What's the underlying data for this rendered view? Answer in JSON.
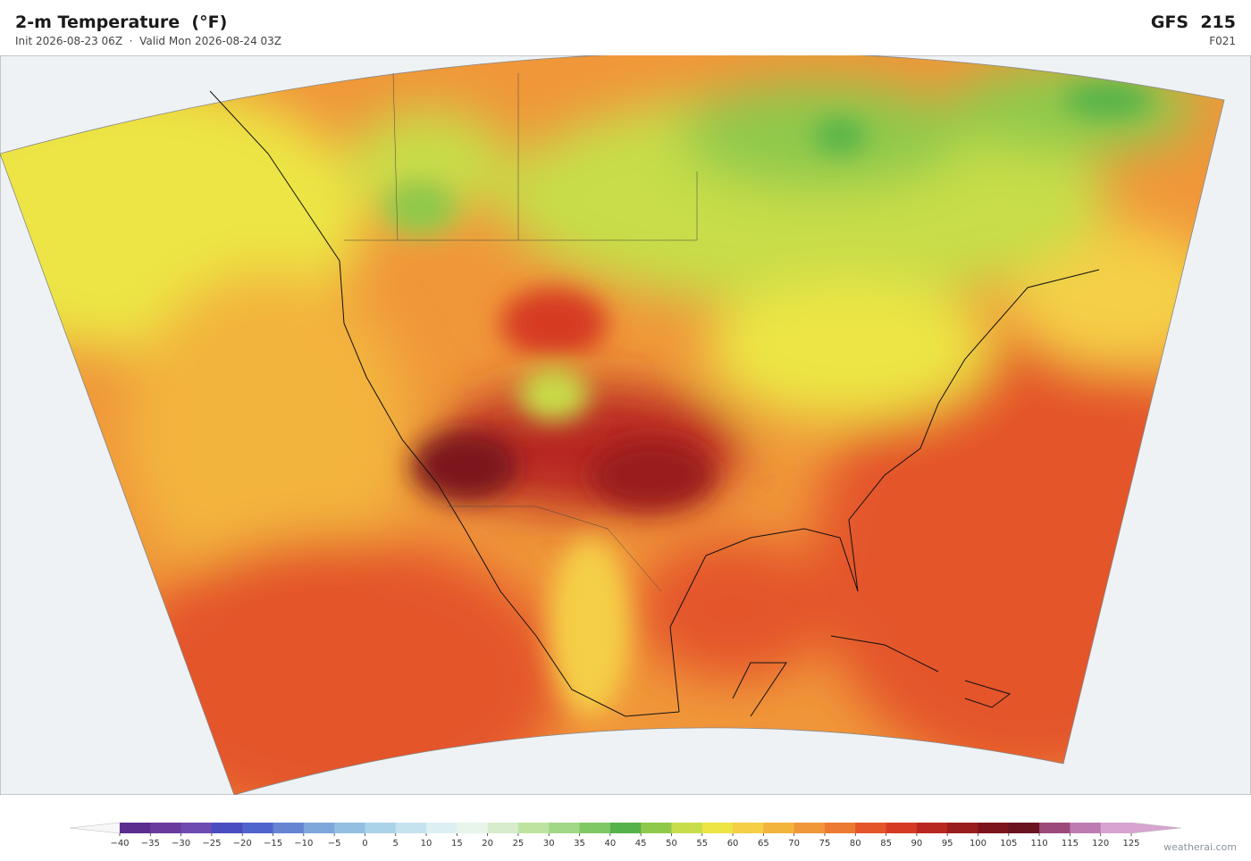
{
  "header": {
    "title": "2-m Temperature  (°F)",
    "subtitle": "Init 2026-08-23 06Z  ·  Valid Mon 2026-08-24 03Z",
    "model": "GFS  215",
    "forecast_hour": "F021"
  },
  "colorbar": {
    "ticks": [
      {
        "value": -40,
        "label": "−40"
      },
      {
        "value": -35,
        "label": "−35"
      },
      {
        "value": -30,
        "label": "−30"
      },
      {
        "value": -25,
        "label": "−25"
      },
      {
        "value": -20,
        "label": "−20"
      },
      {
        "value": -15,
        "label": "−15"
      },
      {
        "value": -10,
        "label": "−10"
      },
      {
        "value": -5,
        "label": "−5"
      },
      0,
      5,
      10,
      15,
      20,
      25,
      30,
      35,
      40,
      45,
      50,
      55,
      60,
      65,
      70,
      75,
      80,
      85,
      90,
      95,
      100,
      105,
      110,
      115,
      120,
      125
    ],
    "colors": [
      "#5b2d8e",
      "#6a3a9e",
      "#6e4bb0",
      "#4a4dbf",
      "#4f64cc",
      "#6585d3",
      "#7ea7dc",
      "#93bfe3",
      "#aad3ea",
      "#c5e3ef",
      "#dcf0f2",
      "#e8f5ea",
      "#d6eccc",
      "#bce3a0",
      "#a0d885",
      "#7fc866",
      "#55b24a",
      "#8fc94b",
      "#c8dd4a",
      "#ece544",
      "#f5cf46",
      "#f3b43e",
      "#f0973a",
      "#ec7a33",
      "#e4552a",
      "#d63a24",
      "#b82820",
      "#9a1d1e",
      "#7c141b",
      "#6a1420",
      "#9b4a7a",
      "#be7bb1",
      "#d7a4cf"
    ],
    "under_color": "#f7f7f7",
    "over_color": "#d7a4cf"
  },
  "footer": {
    "watermark": "weatherai.com"
  }
}
